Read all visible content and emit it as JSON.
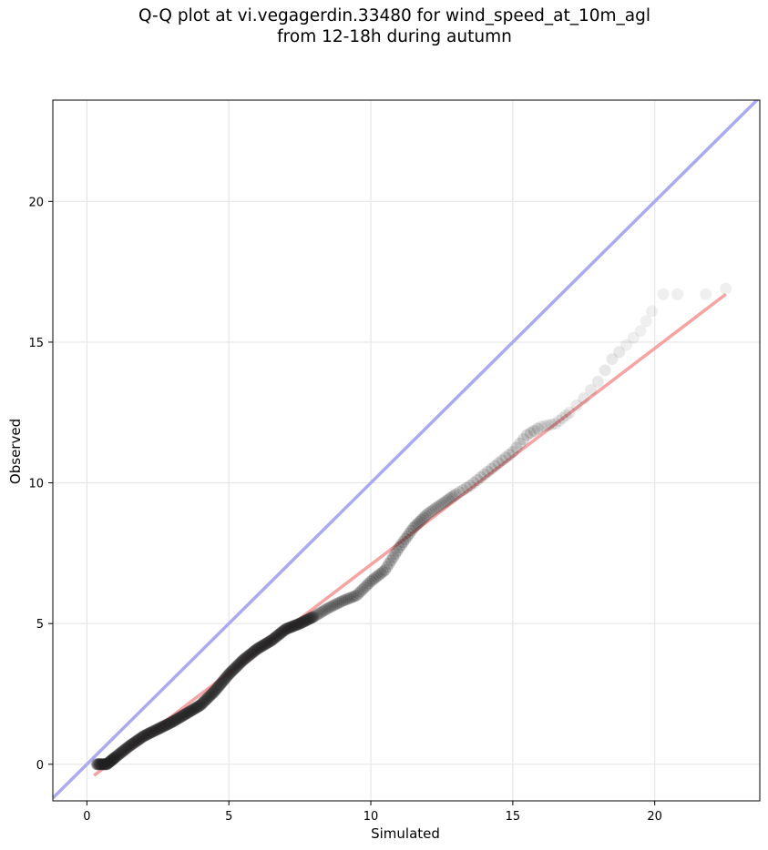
{
  "chart_data": {
    "type": "scatter",
    "title_line1": "Q-Q plot at vi.vegagerdin.33480 for wind_speed_at_10m_agl",
    "title_line2": "from 12-18h during autumn",
    "xlabel": "Simulated",
    "ylabel": "Observed",
    "xlim": [
      -1.2,
      23.7
    ],
    "ylim": [
      -1.3,
      23.6
    ],
    "xticks": [
      0,
      5,
      10,
      15,
      20
    ],
    "yticks": [
      0,
      5,
      10,
      15,
      20
    ],
    "grid": true,
    "identity_line": {
      "color": "#aaaaf0",
      "from": [
        -1.2,
        -1.2
      ],
      "to": [
        23.7,
        23.7
      ]
    },
    "fit_line": {
      "color": "#f5a3a3",
      "from": [
        0.25,
        -0.4
      ],
      "to": [
        22.5,
        16.7
      ]
    },
    "quantile_curve": [
      [
        0.35,
        0.0
      ],
      [
        0.7,
        0.0
      ],
      [
        1.0,
        0.25
      ],
      [
        1.5,
        0.65
      ],
      [
        2.0,
        1.0
      ],
      [
        2.5,
        1.25
      ],
      [
        3.0,
        1.5
      ],
      [
        3.5,
        1.8
      ],
      [
        4.0,
        2.1
      ],
      [
        4.5,
        2.6
      ],
      [
        5.0,
        3.2
      ],
      [
        5.5,
        3.7
      ],
      [
        6.0,
        4.1
      ],
      [
        6.5,
        4.4
      ],
      [
        7.0,
        4.8
      ],
      [
        7.5,
        5.0
      ],
      [
        8.0,
        5.25
      ],
      [
        8.5,
        5.55
      ],
      [
        9.0,
        5.8
      ],
      [
        9.5,
        6.0
      ],
      [
        10.0,
        6.5
      ],
      [
        10.5,
        6.9
      ],
      [
        11.0,
        7.7
      ],
      [
        11.5,
        8.4
      ],
      [
        12.0,
        8.9
      ],
      [
        12.5,
        9.25
      ],
      [
        13.0,
        9.6
      ],
      [
        13.5,
        9.9
      ],
      [
        14.0,
        10.3
      ],
      [
        14.5,
        10.7
      ],
      [
        15.0,
        11.1
      ],
      [
        15.5,
        11.7
      ],
      [
        16.0,
        12.0
      ],
      [
        16.5,
        12.1
      ],
      [
        17.0,
        12.5
      ],
      [
        17.5,
        13.0
      ],
      [
        18.0,
        13.6
      ],
      [
        18.5,
        14.4
      ],
      [
        19.0,
        14.9
      ],
      [
        19.5,
        15.4
      ],
      [
        19.9,
        16.1
      ]
    ],
    "tail_points": [
      [
        20.3,
        16.7
      ],
      [
        20.8,
        16.7
      ],
      [
        21.8,
        16.7
      ],
      [
        22.5,
        16.9
      ]
    ],
    "marker_color": "#222222"
  }
}
